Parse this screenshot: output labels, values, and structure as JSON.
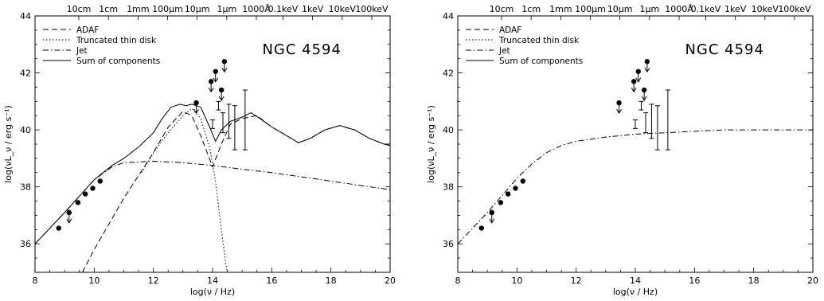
{
  "chart_data": [
    {
      "type": "line",
      "annotation": "NGC 4594",
      "xlabel": "log(ν / Hz)",
      "ylabel": "log(νL_ν / erg s⁻¹)",
      "xlim": [
        8,
        20
      ],
      "ylim": [
        35,
        44
      ],
      "x_ticks": [
        8,
        10,
        12,
        14,
        16,
        18,
        20
      ],
      "y_ticks": [
        36,
        38,
        40,
        42,
        44
      ],
      "top_axis_labels": [
        {
          "x": 9.48,
          "text": "10cm"
        },
        {
          "x": 10.48,
          "text": "1cm"
        },
        {
          "x": 11.48,
          "text": "1mm"
        },
        {
          "x": 12.48,
          "text": "100μm"
        },
        {
          "x": 13.48,
          "text": "10μm"
        },
        {
          "x": 14.48,
          "text": "1μm"
        },
        {
          "x": 15.48,
          "text": "1000Å"
        },
        {
          "x": 16.38,
          "text": "0.1keV"
        },
        {
          "x": 17.38,
          "text": "1keV"
        },
        {
          "x": 18.38,
          "text": "10keV"
        },
        {
          "x": 19.38,
          "text": "100keV"
        }
      ],
      "legend": [
        {
          "label": "ADAF",
          "style": "dashed"
        },
        {
          "label": "Truncated thin disk",
          "style": "dotted"
        },
        {
          "label": "Jet",
          "style": "dashdot"
        },
        {
          "label": "Sum of components",
          "style": "solid"
        }
      ],
      "series": [
        {
          "name": "ADAF",
          "style": "dashed",
          "x": [
            9.6,
            10.0,
            10.5,
            11.0,
            11.5,
            12.0,
            12.5,
            13.0,
            13.3,
            13.6,
            14.0,
            14.3,
            14.6,
            15.0,
            15.5,
            16.0,
            16.5,
            16.9,
            17.3,
            17.8,
            18.3,
            18.8,
            19.3,
            19.8,
            20.0
          ],
          "y": [
            35.0,
            35.8,
            36.7,
            37.6,
            38.4,
            39.2,
            40.1,
            40.65,
            40.5,
            39.8,
            38.7,
            39.5,
            40.2,
            40.4,
            40.5,
            40.1,
            39.8,
            39.55,
            39.7,
            40.0,
            40.15,
            40.0,
            39.7,
            39.5,
            39.5
          ]
        },
        {
          "name": "Truncated thin disk",
          "style": "dotted",
          "x": [
            11.6,
            12.0,
            12.5,
            13.0,
            13.3,
            13.6,
            13.9,
            14.1,
            14.3,
            14.45,
            14.5
          ],
          "y": [
            38.5,
            39.2,
            39.9,
            40.5,
            40.75,
            40.4,
            39.4,
            38.2,
            36.5,
            35.3,
            35.0
          ]
        },
        {
          "name": "Jet",
          "style": "dashdot",
          "x": [
            8,
            9,
            10,
            10.6,
            11,
            12,
            13,
            14,
            15,
            16,
            17,
            18,
            19,
            20
          ],
          "y": [
            36.0,
            37.1,
            38.25,
            38.7,
            38.85,
            38.9,
            38.85,
            38.75,
            38.62,
            38.5,
            38.35,
            38.2,
            38.05,
            37.9
          ]
        },
        {
          "name": "Sum of components",
          "style": "solid",
          "x": [
            8,
            9,
            10,
            10.6,
            11,
            11.5,
            12,
            12.3,
            12.6,
            12.9,
            13.1,
            13.3,
            13.6,
            13.9,
            14.1,
            14.3,
            14.6,
            15.0,
            15.3,
            15.6,
            16.0,
            16.5,
            16.9,
            17.3,
            17.8,
            18.3,
            18.8,
            19.3,
            19.8,
            20.0
          ],
          "y": [
            36.0,
            37.1,
            38.25,
            38.75,
            39.0,
            39.4,
            39.9,
            40.4,
            40.8,
            40.9,
            40.85,
            40.9,
            40.8,
            40.1,
            39.6,
            40.0,
            40.3,
            40.45,
            40.6,
            40.4,
            40.1,
            39.8,
            39.55,
            39.7,
            40.0,
            40.15,
            40.0,
            39.7,
            39.5,
            39.45
          ]
        }
      ],
      "detections": {
        "x": [
          8.8,
          9.15,
          9.45,
          9.7,
          9.95,
          10.2
        ],
        "y": [
          36.55,
          37.1,
          37.45,
          37.75,
          37.95,
          38.2
        ]
      },
      "upper_limits": {
        "x": [
          9.15,
          13.45,
          13.95,
          14.1,
          14.3,
          14.4
        ],
        "y": [
          37.1,
          40.95,
          41.7,
          42.05,
          41.4,
          42.4
        ]
      },
      "error_bars": [
        {
          "x": 14.0,
          "y": 40.2,
          "ylo": 40.05,
          "yhi": 40.35
        },
        {
          "x": 14.2,
          "y": 40.85,
          "ylo": 40.7,
          "yhi": 41.0
        },
        {
          "x": 14.35,
          "y": 40.3,
          "ylo": 39.9,
          "yhi": 40.6
        },
        {
          "x": 14.55,
          "y": 40.35,
          "ylo": 39.7,
          "yhi": 40.9
        },
        {
          "x": 14.75,
          "y": 40.25,
          "ylo": 39.3,
          "yhi": 40.85
        },
        {
          "x": 15.1,
          "y": 40.25,
          "ylo": 39.3,
          "yhi": 41.4
        }
      ],
      "grid": false,
      "legend_position": "top-left"
    },
    {
      "type": "line",
      "annotation": "NGC 4594",
      "xlabel": "log(ν / Hz)",
      "ylabel": "log(νL_ν / erg s⁻¹)",
      "xlim": [
        8,
        20
      ],
      "ylim": [
        35,
        44
      ],
      "x_ticks": [
        8,
        10,
        12,
        14,
        16,
        18,
        20
      ],
      "y_ticks": [
        36,
        38,
        40,
        42,
        44
      ],
      "top_axis_labels": [
        {
          "x": 9.48,
          "text": "10cm"
        },
        {
          "x": 10.48,
          "text": "1cm"
        },
        {
          "x": 11.48,
          "text": "1mm"
        },
        {
          "x": 12.48,
          "text": "100μm"
        },
        {
          "x": 13.48,
          "text": "10μm"
        },
        {
          "x": 14.48,
          "text": "1μm"
        },
        {
          "x": 15.48,
          "text": "1000Å"
        },
        {
          "x": 16.38,
          "text": "0.1keV"
        },
        {
          "x": 17.38,
          "text": "1keV"
        },
        {
          "x": 18.38,
          "text": "10keV"
        },
        {
          "x": 19.38,
          "text": "100keV"
        }
      ],
      "legend": [
        {
          "label": "ADAF",
          "style": "dashed"
        },
        {
          "label": "Truncated thin disk",
          "style": "dotted"
        },
        {
          "label": "Jet",
          "style": "dashdot"
        },
        {
          "label": "Sum of components",
          "style": "solid"
        }
      ],
      "series": [
        {
          "name": "Jet",
          "style": "dashdot",
          "x": [
            8,
            9,
            10,
            10.5,
            11,
            11.5,
            12,
            13,
            14,
            15,
            16,
            17,
            18,
            19,
            20
          ],
          "y": [
            36.0,
            37.1,
            38.3,
            38.8,
            39.2,
            39.45,
            39.6,
            39.75,
            39.85,
            39.9,
            39.95,
            40.0,
            40.0,
            40.0,
            40.0
          ]
        }
      ],
      "detections": {
        "x": [
          8.8,
          9.15,
          9.45,
          9.7,
          9.95,
          10.2
        ],
        "y": [
          36.55,
          37.1,
          37.45,
          37.75,
          37.95,
          38.2
        ]
      },
      "upper_limits": {
        "x": [
          9.15,
          13.45,
          13.95,
          14.1,
          14.3,
          14.4
        ],
        "y": [
          37.1,
          40.95,
          41.7,
          42.05,
          41.4,
          42.4
        ]
      },
      "error_bars": [
        {
          "x": 14.0,
          "y": 40.2,
          "ylo": 40.05,
          "yhi": 40.35
        },
        {
          "x": 14.2,
          "y": 40.85,
          "ylo": 40.7,
          "yhi": 41.0
        },
        {
          "x": 14.35,
          "y": 40.3,
          "ylo": 39.9,
          "yhi": 40.6
        },
        {
          "x": 14.55,
          "y": 40.35,
          "ylo": 39.7,
          "yhi": 40.9
        },
        {
          "x": 14.75,
          "y": 40.25,
          "ylo": 39.3,
          "yhi": 40.85
        },
        {
          "x": 15.1,
          "y": 40.25,
          "ylo": 39.3,
          "yhi": 41.4
        }
      ],
      "grid": false,
      "legend_position": "top-left"
    }
  ]
}
